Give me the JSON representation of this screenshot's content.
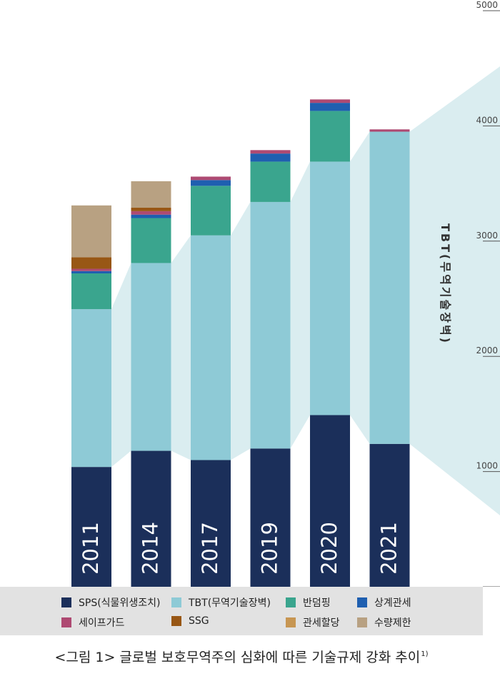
{
  "chart_data": {
    "type": "bar",
    "stacked": true,
    "categories": [
      "2011",
      "2014",
      "2017",
      "2019",
      "2020",
      "2021"
    ],
    "series": [
      {
        "name": "SPS(식물위생조치)",
        "color": "#1b2f5a",
        "values": [
          1040,
          1180,
          1100,
          1200,
          1490,
          1240
        ]
      },
      {
        "name": "TBT(무역기술장벽)",
        "color": "#8ecad6",
        "values": [
          1370,
          1630,
          1950,
          2140,
          2200,
          2710
        ]
      },
      {
        "name": "반덤핑",
        "color": "#3aa58e",
        "values": [
          310,
          390,
          430,
          350,
          440,
          0
        ]
      },
      {
        "name": "상계관세",
        "color": "#1f5fb0",
        "values": [
          20,
          30,
          50,
          70,
          70,
          0
        ]
      },
      {
        "name": "세이프가드",
        "color": "#ae4a72",
        "values": [
          20,
          30,
          30,
          30,
          30,
          20
        ]
      },
      {
        "name": "SSG",
        "color": "#985715",
        "values": [
          100,
          30,
          0,
          0,
          0,
          0
        ]
      },
      {
        "name": "관세할당",
        "color": "#c79652",
        "values": [
          0,
          0,
          0,
          0,
          0,
          0
        ]
      },
      {
        "name": "수량제한",
        "color": "#b8a182",
        "values": [
          450,
          230,
          0,
          0,
          0,
          0
        ]
      }
    ],
    "ylim": [
      0,
      5000
    ],
    "y_ticks": [
      "0",
      "1000",
      "2000",
      "3000",
      "4000",
      "5000"
    ],
    "y_axis_position": "right",
    "ylabel": "TBT(무역기술장벽)",
    "highlight_series": "TBT(무역기술장벽)",
    "highlight_color": "#daedf0",
    "bar_label_color": "#ffffff",
    "grid": false,
    "legend_position": "bottom"
  },
  "legend_bg": "#e2e2e2",
  "caption": {
    "text": "<그림 1> 글로벌 보호무역주의 심화에 따른 기술규제 강화 추이",
    "footnote": "1)"
  }
}
